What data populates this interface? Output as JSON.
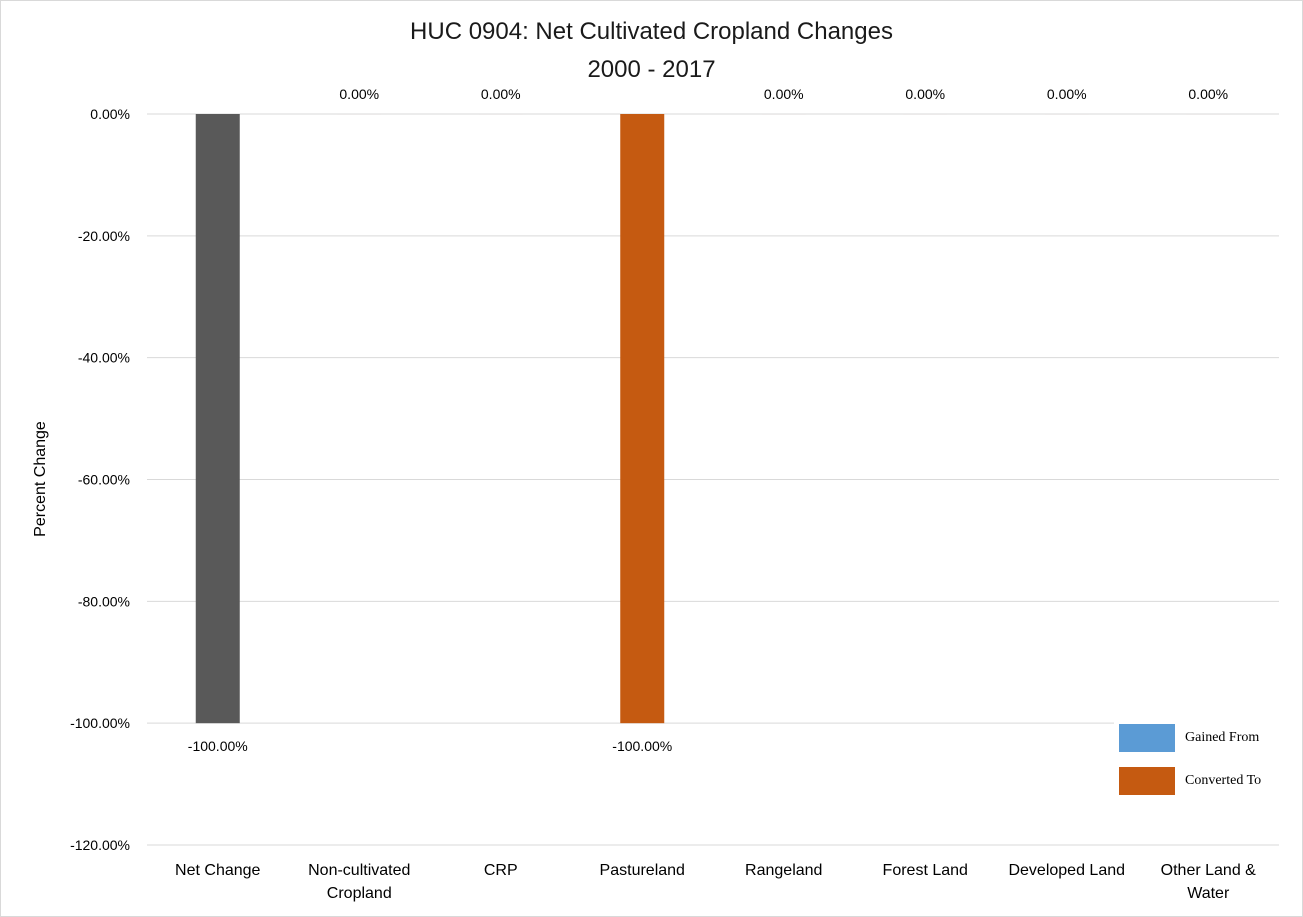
{
  "chart_data": {
    "type": "bar",
    "title": [
      "HUC 0904: Net Cultivated Cropland Changes",
      "2000 - 2017"
    ],
    "ylabel": "Percent Change",
    "xlabel": "",
    "ylim": [
      -120,
      0
    ],
    "yticks": [
      0,
      -20,
      -40,
      -60,
      -80,
      -100,
      -120
    ],
    "ytick_labels": [
      "0.00%",
      "-20.00%",
      "-40.00%",
      "-60.00%",
      "-80.00%",
      "-100.00%",
      "-120.00%"
    ],
    "categories": [
      [
        "Net Change"
      ],
      [
        "Non-cultivated",
        "Cropland"
      ],
      [
        "CRP"
      ],
      [
        "Pastureland"
      ],
      [
        "Rangeland"
      ],
      [
        "Forest Land"
      ],
      [
        "Developed Land"
      ],
      [
        "Other Land &",
        "Water"
      ]
    ],
    "values": [
      -100,
      0,
      0,
      -100,
      0,
      0,
      0,
      0
    ],
    "data_labels": [
      "-100.00%",
      "0.00%",
      "0.00%",
      "-100.00%",
      "0.00%",
      "0.00%",
      "0.00%",
      "0.00%"
    ],
    "bar_colors": [
      "#595959",
      "#c55a11",
      "#c55a11",
      "#c55a11",
      "#c55a11",
      "#c55a11",
      "#c55a11",
      "#c55a11"
    ],
    "grid": true,
    "legend": {
      "position": "bottom-right",
      "items": [
        {
          "label": "Gained From",
          "color": "#5b9bd5"
        },
        {
          "label": "Converted To",
          "color": "#c55a11"
        }
      ]
    }
  }
}
